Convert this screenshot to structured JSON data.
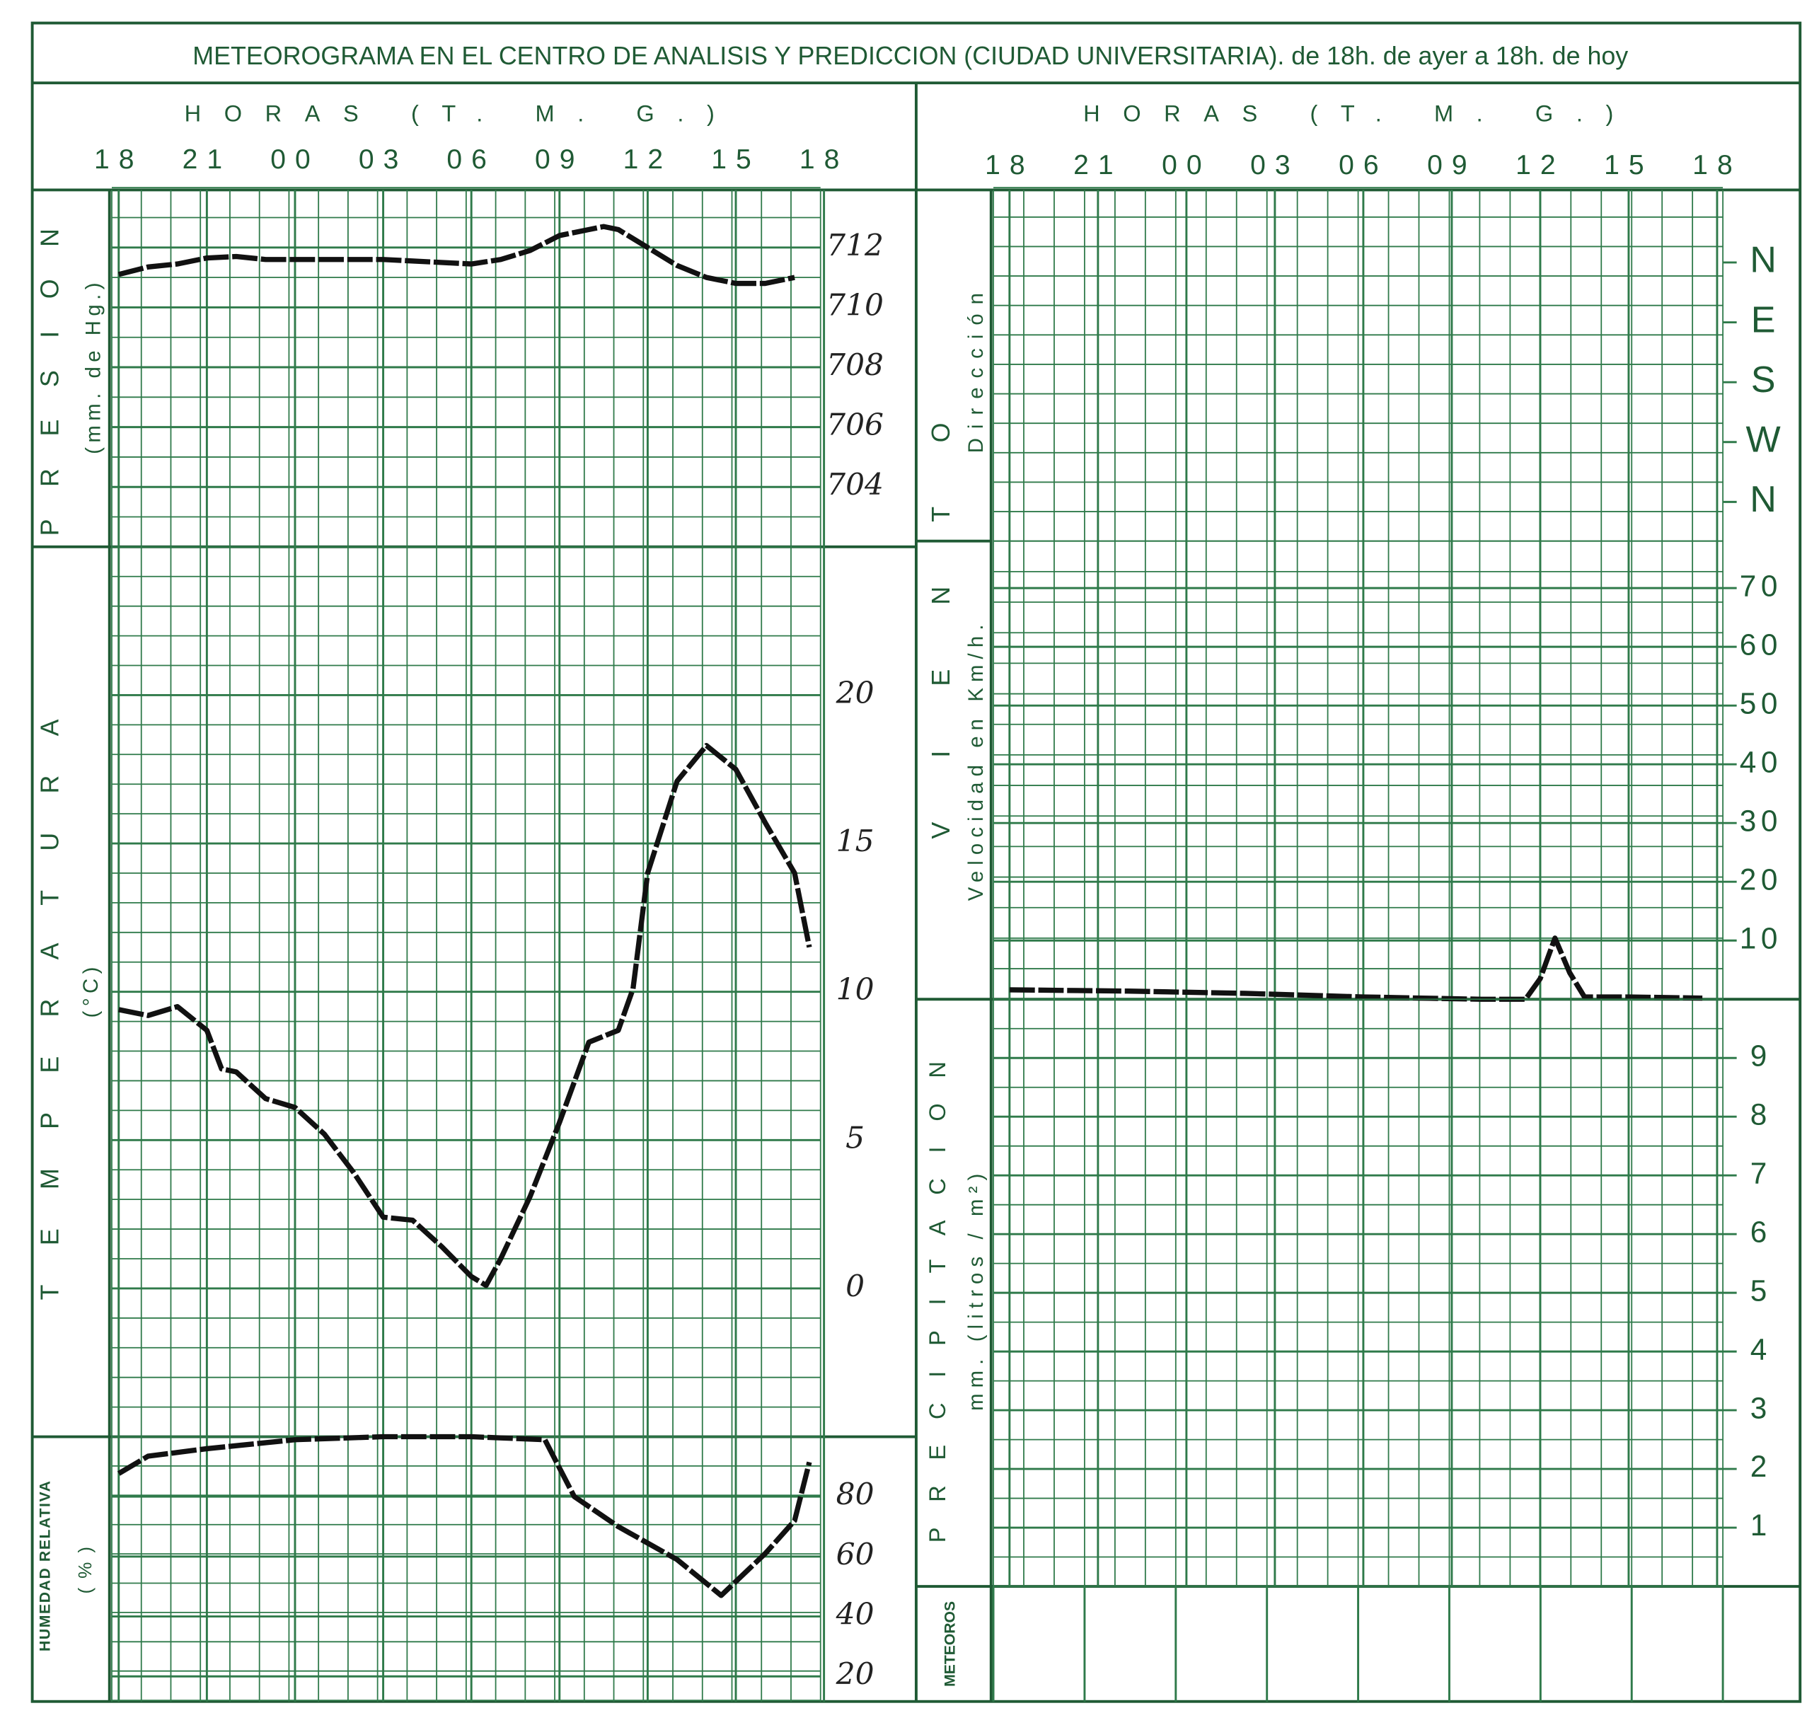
{
  "title": "METEOROGRAMA EN EL CENTRO DE ANALISIS Y PREDICCION (CIUDAD UNIVERSITARIA). de 18h. de ayer a 18h. de hoy",
  "wind_label": "VIENTO",
  "meteoros": "METEOROS",
  "chart_data": [
    {
      "type": "line",
      "xlabel": "HORAS (T. M. G.)",
      "ylabel": "PRESION",
      "yunit": "(mm. de Hg.)",
      "color": "#111111",
      "xlim": [
        0,
        24
      ],
      "xticks": [
        {
          "value": 0,
          "label": "18"
        },
        {
          "value": 3,
          "label": "21"
        },
        {
          "value": 6,
          "label": "00"
        },
        {
          "value": 9,
          "label": "03"
        },
        {
          "value": 12,
          "label": "06"
        },
        {
          "value": 15,
          "label": "09"
        },
        {
          "value": 18,
          "label": "12"
        },
        {
          "value": 21,
          "label": "15"
        },
        {
          "value": 24,
          "label": "18"
        }
      ],
      "ylim": [
        702,
        714
      ],
      "yticks": [
        712,
        710,
        708,
        706,
        704
      ],
      "x": [
        0,
        1,
        2,
        3,
        4,
        5,
        6,
        9,
        12,
        13,
        14,
        15,
        16,
        16.5,
        17,
        18,
        19,
        20,
        21,
        22,
        23
      ],
      "values": [
        711.1,
        711.35,
        711.45,
        711.65,
        711.7,
        711.6,
        711.6,
        711.6,
        711.45,
        711.6,
        711.9,
        712.4,
        712.6,
        712.7,
        712.6,
        712,
        711.4,
        711.0,
        710.8,
        710.8,
        711.0
      ]
    },
    {
      "type": "line",
      "ylabel": "TEMPERATURA",
      "yunit": "(°C)",
      "color": "#111111",
      "xlim": [
        0,
        24
      ],
      "ylim": [
        -5,
        25
      ],
      "yticks": [
        20,
        15,
        10,
        5,
        0
      ],
      "x": [
        0,
        1,
        2,
        3,
        3.5,
        4,
        5,
        6,
        7,
        8,
        9,
        10,
        11,
        12,
        12.5,
        13,
        14,
        15,
        16,
        17,
        17.5,
        18,
        19,
        20,
        21,
        22,
        23,
        23.5
      ],
      "values": [
        9.4,
        9.2,
        9.5,
        8.7,
        7.4,
        7.3,
        6.4,
        6.1,
        5.2,
        3.9,
        2.4,
        2.3,
        1.4,
        0.4,
        0.1,
        1.0,
        3.1,
        5.6,
        8.3,
        8.7,
        10.1,
        14,
        17.1,
        18.3,
        17.5,
        15.7,
        14.0,
        11.5
      ]
    },
    {
      "type": "line",
      "ylabel": "HUMEDAD RELATIVA",
      "yunit": "(%)",
      "color": "#111111",
      "xlim": [
        0,
        24
      ],
      "ylim": [
        12,
        100
      ],
      "yticks": [
        80,
        60,
        40,
        20
      ],
      "x": [
        0,
        1,
        3,
        6,
        9,
        12,
        14.5,
        15.5,
        17,
        19,
        20.5,
        22,
        23,
        23.5
      ],
      "values": [
        87.7,
        93.5,
        96,
        99,
        100,
        100,
        99,
        80,
        70,
        59,
        47,
        61,
        72,
        91.5
      ]
    },
    {
      "type": "line",
      "xlabel": "HORAS (T. M. G.)",
      "ylabel": "Dirección",
      "xlim": [
        0,
        24
      ],
      "xticks": [
        {
          "value": 0,
          "label": "18"
        },
        {
          "value": 3,
          "label": "21"
        },
        {
          "value": 6,
          "label": "00"
        },
        {
          "value": 9,
          "label": "03"
        },
        {
          "value": 12,
          "label": "06"
        },
        {
          "value": 15,
          "label": "09"
        },
        {
          "value": 18,
          "label": "12"
        },
        {
          "value": 21,
          "label": "15"
        },
        {
          "value": 24,
          "label": "18"
        }
      ],
      "y_categories": [
        "N",
        "E",
        "S",
        "W",
        "N"
      ]
    },
    {
      "type": "line",
      "ylabel": "Velocidad en Km/h.",
      "color": "#111111",
      "xlim": [
        0,
        24
      ],
      "ylim": [
        0,
        78
      ],
      "yticks": [
        70,
        60,
        50,
        40,
        30,
        20,
        10
      ],
      "x": [
        0,
        4,
        8,
        12,
        16,
        17.5,
        18,
        18.5,
        19,
        19.5,
        21,
        23.5
      ],
      "values": [
        1.6,
        1.4,
        1,
        0.4,
        0,
        0,
        3.5,
        10.4,
        4.5,
        0.4,
        0.4,
        0.2
      ]
    },
    {
      "type": "bar",
      "ylabel": "PRECIPITACION",
      "yunit": "mm. (litros / m²)",
      "xlim": [
        0,
        24
      ],
      "ylim": [
        0,
        10
      ],
      "yticks": [
        9,
        8,
        7,
        6,
        5,
        4,
        3,
        2,
        1
      ]
    }
  ]
}
